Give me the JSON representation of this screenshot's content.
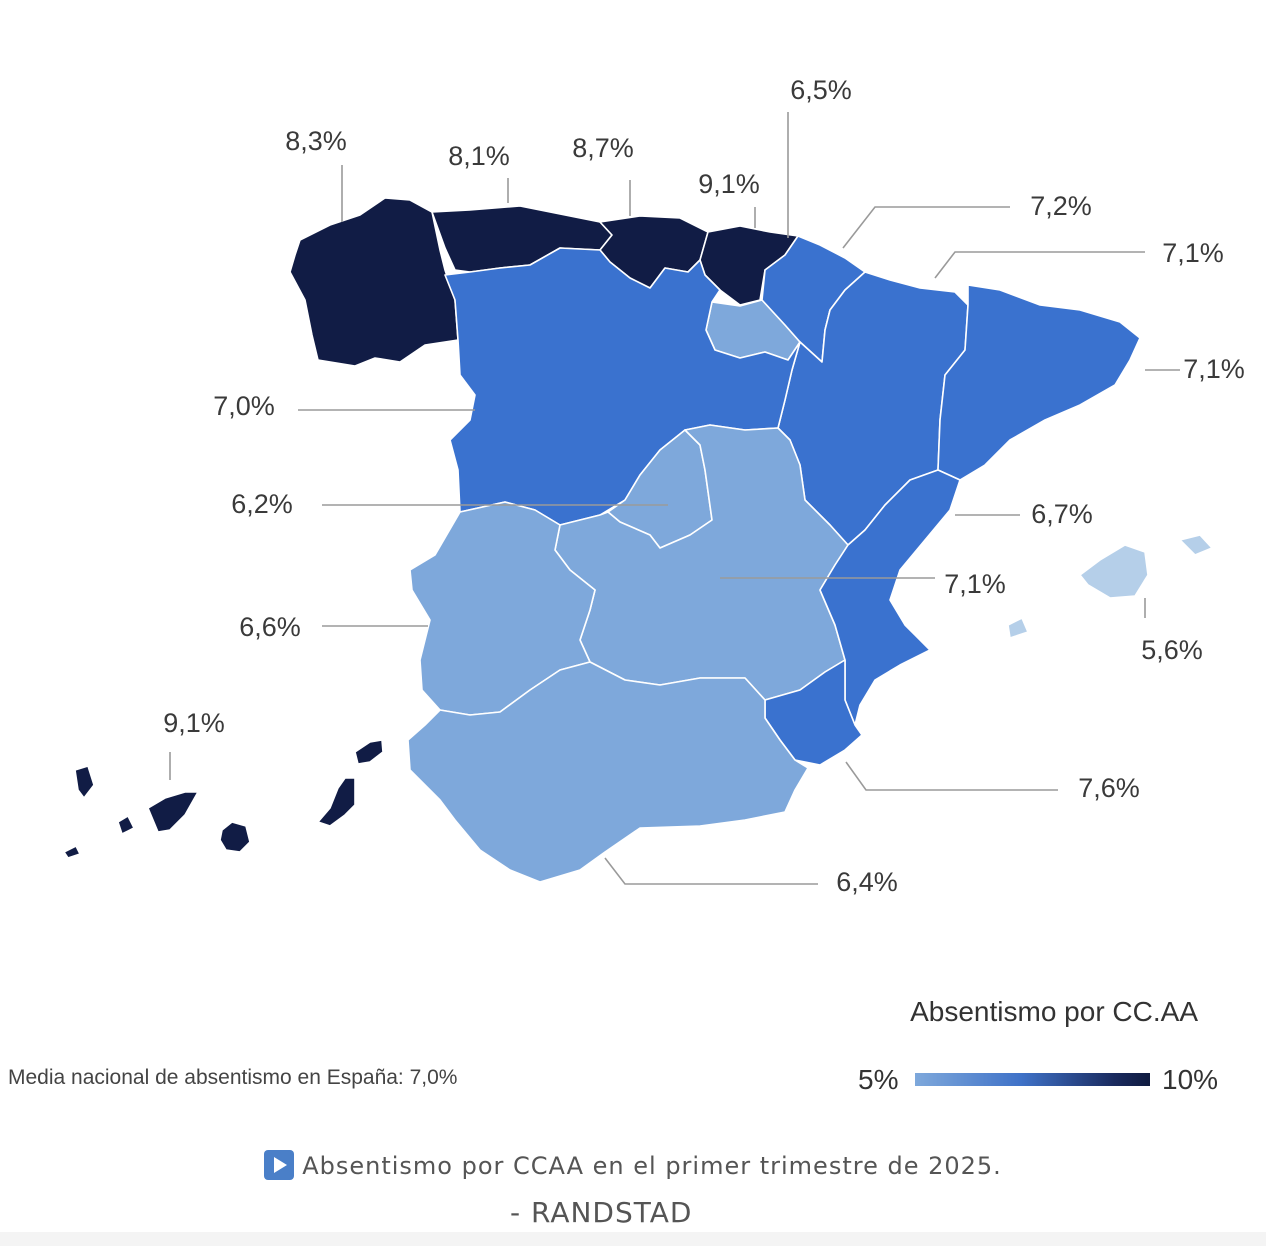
{
  "map": {
    "regions": [
      {
        "name": "Galicia",
        "value": "8,3%",
        "color": "#111c45"
      },
      {
        "name": "Asturias",
        "value": "8,1%",
        "color": "#111c45"
      },
      {
        "name": "Cantabria",
        "value": "8,7%",
        "color": "#111c45"
      },
      {
        "name": "País Vasco",
        "value": "9,1%",
        "color": "#111c45"
      },
      {
        "name": "La Rioja",
        "value": "6,5%",
        "color": "#7ea8db"
      },
      {
        "name": "Navarra",
        "value": "7,2%",
        "color": "#3a72cf"
      },
      {
        "name": "Aragón",
        "value": "7,1%",
        "color": "#3a72cf"
      },
      {
        "name": "Cataluña",
        "value": "7,1%",
        "color": "#3a72cf"
      },
      {
        "name": "Castilla y León",
        "value": "7,0%",
        "color": "#3a72cf"
      },
      {
        "name": "Madrid",
        "value": "6,2%",
        "color": "#7ea8db"
      },
      {
        "name": "Comunidad Valenciana",
        "value": "6,7%",
        "color": "#7ea8db"
      },
      {
        "name": "Castilla-La Mancha",
        "value": "7,1%",
        "color": "#3a72cf"
      },
      {
        "name": "Baleares",
        "value": "5,6%",
        "color": "#b5cfe9"
      },
      {
        "name": "Extremadura",
        "value": "6,6%",
        "color": "#7ea8db"
      },
      {
        "name": "Canarias",
        "value": "9,1%",
        "color": "#111c45"
      },
      {
        "name": "Murcia",
        "value": "7,6%",
        "color": "#3a72cf"
      },
      {
        "name": "Andalucía",
        "value": "6,4%",
        "color": "#7ea8db"
      }
    ]
  },
  "legend": {
    "title": "Absentismo por CC.AA",
    "min_label": "5%",
    "max_label": "10%"
  },
  "national_average": "Media nacional de absentismo en España: 7,0%",
  "caption": "Absentismo por CCAA en el primer trimestre de 2025.",
  "source": "- RANDSTAD"
}
